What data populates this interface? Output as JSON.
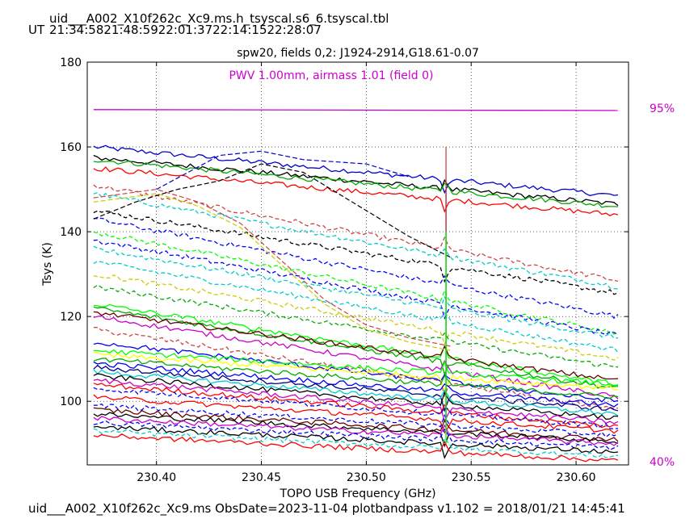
{
  "header": {
    "table_name": "uid___A002_X10f262c_Xc9.ms.h_tsyscal.s6_6.tsyscal.tbl",
    "ut_label": "UT",
    "ut_times": [
      "21:34:58",
      "21:48:59",
      "22:01:37",
      "22:14:15",
      "22:28:07"
    ]
  },
  "footer": {
    "text": "uid___A002_X10f262c_Xc9.ms  ObsDate=2023-11-04   plotbandpass v1.102 = 2018/01/21 14:45:41"
  },
  "colors": {
    "pwv": "#cc00cc",
    "palette": [
      "#000000",
      "#ff0000",
      "#0000ff",
      "#00aa00",
      "#00ff00",
      "#cccc00",
      "#00cccc",
      "#cc00cc",
      "#cc4444",
      "#000080",
      "#660000",
      "#ffff00"
    ]
  },
  "chart_data": {
    "type": "line",
    "title": "spw20,  fields 0,2: J1924-2914,G18.61-0.07",
    "xlabel": "TOPO USB Frequency (GHz)",
    "ylabel": "Tsys (K)",
    "xlim": [
      230.367,
      230.625
    ],
    "ylim": [
      85,
      180
    ],
    "grid": true,
    "xticks": [
      230.4,
      230.45,
      230.5,
      230.55,
      230.6
    ],
    "xtick_labels": [
      "230.40",
      "230.45",
      "230.50",
      "230.55",
      "230.60"
    ],
    "yticks": [
      100,
      120,
      140,
      160,
      180
    ],
    "ytick_labels": [
      "100",
      "120",
      "140",
      "160",
      "180"
    ],
    "annotations": {
      "pwv": "PWV 1.00mm, airmass 1.01 (field 0)",
      "right_top": "95%",
      "right_bottom": "40%"
    },
    "atmospheric_transmission": {
      "name": "PWV",
      "x": [
        230.37,
        230.62
      ],
      "y": [
        168.8,
        168.6
      ]
    },
    "spike_freq": 230.538,
    "series_levels": [
      {
        "start": 160,
        "end": 148.5,
        "color": "#0000cc",
        "style": "solid"
      },
      {
        "start": 157.5,
        "end": 146.5,
        "color": "#000000",
        "style": "solid"
      },
      {
        "start": 157,
        "end": 146,
        "color": "#00aa00",
        "style": "solid"
      },
      {
        "start": 155,
        "end": 144,
        "color": "#ff0000",
        "style": "solid"
      },
      {
        "start": 151,
        "end": 128.5,
        "color": "#cc4444",
        "style": "dashed"
      },
      {
        "start": 149,
        "end": 127,
        "color": "#00cccc",
        "style": "dashed"
      },
      {
        "start": 145,
        "end": 125.5,
        "color": "#000000",
        "style": "dashed"
      },
      {
        "start": 143,
        "end": 120,
        "color": "#0000ff",
        "style": "dashed"
      },
      {
        "start": 140,
        "end": 116,
        "color": "#00ff00",
        "style": "dashed"
      },
      {
        "start": 138,
        "end": 115.5,
        "color": "#0000ff",
        "style": "dashed"
      },
      {
        "start": 136,
        "end": 115,
        "color": "#00cccc",
        "style": "dashed"
      },
      {
        "start": 133,
        "end": 112,
        "color": "#00cccc",
        "style": "dashed"
      },
      {
        "start": 130,
        "end": 110,
        "color": "#cccc00",
        "style": "dashed"
      },
      {
        "start": 127,
        "end": 108,
        "color": "#00aa00",
        "style": "dashed"
      },
      {
        "start": 123,
        "end": 104,
        "color": "#00ff00",
        "style": "solid"
      },
      {
        "start": 122,
        "end": 103,
        "color": "#00aa00",
        "style": "solid"
      },
      {
        "start": 121,
        "end": 105,
        "color": "#660000",
        "style": "solid"
      },
      {
        "start": 120,
        "end": 101,
        "color": "#cc00cc",
        "style": "solid"
      },
      {
        "start": 117,
        "end": 98,
        "color": "#cc4444",
        "style": "dashed"
      },
      {
        "start": 114,
        "end": 100,
        "color": "#0000ff",
        "style": "solid"
      },
      {
        "start": 112,
        "end": 104,
        "color": "#00ff00",
        "style": "solid"
      },
      {
        "start": 111,
        "end": 103,
        "color": "#ffff00",
        "style": "solid"
      },
      {
        "start": 110,
        "end": 101,
        "color": "#00aa00",
        "style": "solid"
      },
      {
        "start": 109,
        "end": 99,
        "color": "#0000ff",
        "style": "solid"
      },
      {
        "start": 108,
        "end": 98,
        "color": "#000080",
        "style": "solid"
      },
      {
        "start": 107,
        "end": 97,
        "color": "#00cccc",
        "style": "solid"
      },
      {
        "start": 106,
        "end": 96,
        "color": "#000000",
        "style": "solid"
      },
      {
        "start": 105,
        "end": 95,
        "color": "#cc00cc",
        "style": "solid"
      },
      {
        "start": 104,
        "end": 94,
        "color": "#ff0000",
        "style": "solid"
      },
      {
        "start": 103,
        "end": 94,
        "color": "#0000ff",
        "style": "dashed"
      },
      {
        "start": 101,
        "end": 93,
        "color": "#ff0000",
        "style": "solid"
      },
      {
        "start": 99,
        "end": 92,
        "color": "#0000ff",
        "style": "dashed"
      },
      {
        "start": 98,
        "end": 91,
        "color": "#660000",
        "style": "solid"
      },
      {
        "start": 97,
        "end": 90.5,
        "color": "#000000",
        "style": "solid"
      },
      {
        "start": 96,
        "end": 90,
        "color": "#cc00cc",
        "style": "solid"
      },
      {
        "start": 95,
        "end": 89,
        "color": "#0000ff",
        "style": "dashed"
      },
      {
        "start": 94,
        "end": 88,
        "color": "#000000",
        "style": "solid"
      },
      {
        "start": 93,
        "end": 87,
        "color": "#00cccc",
        "style": "dashed"
      },
      {
        "start": 92,
        "end": 86,
        "color": "#ff0000",
        "style": "solid"
      }
    ],
    "slewing_series": [
      {
        "x": [
          230.37,
          230.4,
          230.42,
          230.44,
          230.46,
          230.48,
          230.5,
          230.52,
          230.54
        ],
        "y": [
          148,
          150,
          147,
          142,
          133,
          124,
          118,
          115,
          113
        ],
        "color": "#cc4444"
      },
      {
        "x": [
          230.37,
          230.4,
          230.42,
          230.44,
          230.46,
          230.48,
          230.5,
          230.52,
          230.54
        ],
        "y": [
          147,
          149,
          146,
          141,
          132,
          123,
          117,
          114,
          112
        ],
        "color": "#cccc00"
      },
      {
        "x": [
          230.37,
          230.39,
          230.41,
          230.43,
          230.45,
          230.47,
          230.49,
          230.52,
          230.54
        ],
        "y": [
          143,
          147,
          150,
          152,
          156,
          154,
          148,
          139,
          134
        ],
        "color": "#000000"
      },
      {
        "x": [
          230.4,
          230.43,
          230.45,
          230.47,
          230.5,
          230.52
        ],
        "y": [
          150,
          158,
          159,
          157,
          156,
          153
        ],
        "color": "#0000cc"
      }
    ]
  }
}
